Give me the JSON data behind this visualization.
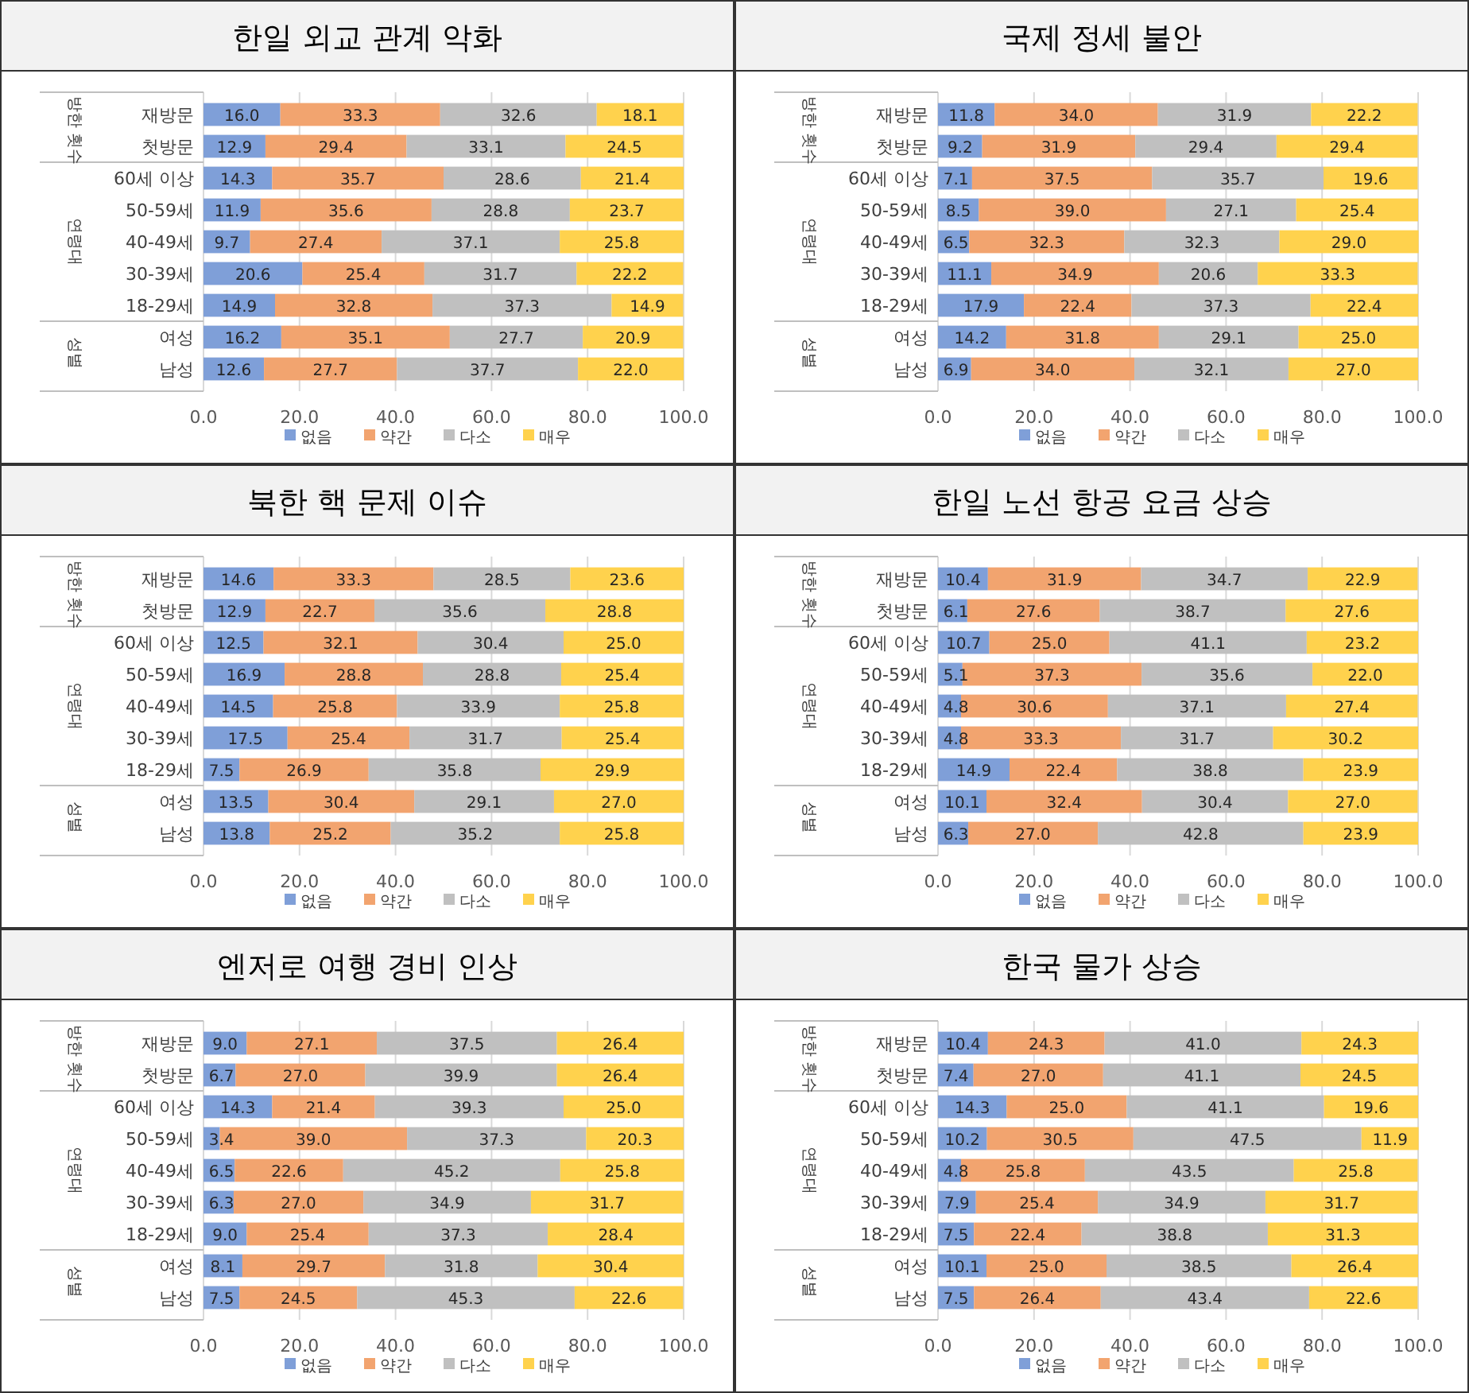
{
  "chart_data": [
    {
      "type": "bar",
      "orientation": "horizontal",
      "stacked": true,
      "title": "한일 외교 관계 악화",
      "categories": [
        "재방문",
        "첫방문",
        "60세 이상",
        "50-59세",
        "40-49세",
        "30-39세",
        "18-29세",
        "여성",
        "남성"
      ],
      "series": [
        {
          "name": "없음",
          "color": "#7f9fd8",
          "values": [
            16.0,
            12.9,
            14.3,
            11.9,
            9.7,
            20.6,
            14.9,
            16.2,
            12.6
          ],
          "value_labels": [
            "16.0",
            "12.9",
            "14.3",
            "11.9",
            "9.7",
            "20.6",
            "14.9",
            "16.2",
            "12.6"
          ]
        },
        {
          "name": "약간",
          "color": "#f2a46f",
          "values": [
            33.3,
            29.4,
            35.7,
            35.6,
            27.4,
            25.4,
            32.8,
            35.1,
            27.7
          ],
          "value_labels": [
            "33.3",
            "29.4",
            "35.7",
            "35.6",
            "27.4",
            "25.4",
            "32.8",
            "35.1",
            "27.7"
          ]
        },
        {
          "name": "다소",
          "color": "#c0c0c0",
          "values": [
            32.6,
            33.1,
            28.6,
            28.8,
            37.1,
            31.7,
            37.3,
            27.7,
            37.7
          ],
          "value_labels": [
            "32.6",
            "33.1",
            "28.6",
            "28.8",
            "37.1",
            "31.7",
            "37.3",
            "27.7",
            "37.7"
          ]
        },
        {
          "name": "매우",
          "color": "#ffd24d",
          "values": [
            18.1,
            24.5,
            21.4,
            23.7,
            25.8,
            22.2,
            14.9,
            20.9,
            22.0
          ],
          "value_labels": [
            "18.1",
            "24.5",
            "21.4",
            "23.7",
            "25.8",
            "22.2",
            "14.9",
            "20.9",
            "22.0"
          ]
        }
      ],
      "xlim": [
        0,
        100
      ],
      "xticks": [
        {
          "value": 0,
          "label": "0.0"
        },
        {
          "value": 20,
          "label": "20.0"
        },
        {
          "value": 40,
          "label": "40.0"
        },
        {
          "value": 60,
          "label": "60.0"
        },
        {
          "value": 80,
          "label": "80.0"
        },
        {
          "value": 100,
          "label": "100.0"
        }
      ],
      "grid": "x",
      "legend": "bottom",
      "annotations": [
        "방한 횟수",
        "연령대",
        "성별"
      ]
    },
    {
      "type": "bar",
      "orientation": "horizontal",
      "stacked": true,
      "title": "국제 정세 불안",
      "categories": [
        "재방문",
        "첫방문",
        "60세 이상",
        "50-59세",
        "40-49세",
        "30-39세",
        "18-29세",
        "여성",
        "남성"
      ],
      "series": [
        {
          "name": "없음",
          "color": "#7f9fd8",
          "values": [
            11.8,
            9.2,
            7.1,
            8.5,
            6.5,
            11.1,
            17.9,
            14.2,
            6.9
          ],
          "value_labels": [
            "11.8",
            "9.2",
            "7.1",
            "8.5",
            "6.5",
            "11.1",
            "17.9",
            "14.2",
            "6.9"
          ]
        },
        {
          "name": "약간",
          "color": "#f2a46f",
          "values": [
            34.0,
            31.9,
            37.5,
            39.0,
            32.3,
            34.9,
            22.4,
            31.8,
            34.0
          ],
          "value_labels": [
            "34.0",
            "31.9",
            "37.5",
            "39.0",
            "32.3",
            "34.9",
            "22.4",
            "31.8",
            "34.0"
          ]
        },
        {
          "name": "다소",
          "color": "#c0c0c0",
          "values": [
            31.9,
            29.4,
            35.7,
            27.1,
            32.3,
            20.6,
            37.3,
            29.1,
            32.1
          ],
          "value_labels": [
            "31.9",
            "29.4",
            "35.7",
            "27.1",
            "32.3",
            "20.6",
            "37.3",
            "29.1",
            "32.1"
          ]
        },
        {
          "name": "매우",
          "color": "#ffd24d",
          "values": [
            22.2,
            29.4,
            19.6,
            25.4,
            29.0,
            33.3,
            22.4,
            25.0,
            27.0
          ],
          "value_labels": [
            "22.2",
            "29.4",
            "19.6",
            "25.4",
            "29.0",
            "33.3",
            "22.4",
            "25.0",
            "27.0"
          ]
        }
      ],
      "xlim": [
        0,
        100
      ],
      "xticks": [
        {
          "value": 0,
          "label": "0.0"
        },
        {
          "value": 20,
          "label": "20.0"
        },
        {
          "value": 40,
          "label": "40.0"
        },
        {
          "value": 60,
          "label": "60.0"
        },
        {
          "value": 80,
          "label": "80.0"
        },
        {
          "value": 100,
          "label": "100.0"
        }
      ],
      "grid": "x",
      "legend": "bottom",
      "annotations": [
        "방한 횟수",
        "연령대",
        "성별"
      ]
    },
    {
      "type": "bar",
      "orientation": "horizontal",
      "stacked": true,
      "title": "북한 핵 문제 이슈",
      "categories": [
        "재방문",
        "첫방문",
        "60세 이상",
        "50-59세",
        "40-49세",
        "30-39세",
        "18-29세",
        "여성",
        "남성"
      ],
      "series": [
        {
          "name": "없음",
          "color": "#7f9fd8",
          "values": [
            14.6,
            12.9,
            12.5,
            16.9,
            14.5,
            17.5,
            7.5,
            13.5,
            13.8
          ],
          "value_labels": [
            "14.6",
            "12.9",
            "12.5",
            "16.9",
            "14.5",
            "17.5",
            "7.5",
            "13.5",
            "13.8"
          ]
        },
        {
          "name": "약간",
          "color": "#f2a46f",
          "values": [
            33.3,
            22.7,
            32.1,
            28.8,
            25.8,
            25.4,
            26.9,
            30.4,
            25.2
          ],
          "value_labels": [
            "33.3",
            "22.7",
            "32.1",
            "28.8",
            "25.8",
            "25.4",
            "26.9",
            "30.4",
            "25.2"
          ]
        },
        {
          "name": "다소",
          "color": "#c0c0c0",
          "values": [
            28.5,
            35.6,
            30.4,
            28.8,
            33.9,
            31.7,
            35.8,
            29.1,
            35.2
          ],
          "value_labels": [
            "28.5",
            "35.6",
            "30.4",
            "28.8",
            "33.9",
            "31.7",
            "35.8",
            "29.1",
            "35.2"
          ]
        },
        {
          "name": "매우",
          "color": "#ffd24d",
          "values": [
            23.6,
            28.8,
            25.0,
            25.4,
            25.8,
            25.4,
            29.9,
            27.0,
            25.8
          ],
          "value_labels": [
            "23.6",
            "28.8",
            "25.0",
            "25.4",
            "25.8",
            "25.4",
            "29.9",
            "27.0",
            "25.8"
          ]
        }
      ],
      "xlim": [
        0,
        100
      ],
      "xticks": [
        {
          "value": 0,
          "label": "0.0"
        },
        {
          "value": 20,
          "label": "20.0"
        },
        {
          "value": 40,
          "label": "40.0"
        },
        {
          "value": 60,
          "label": "60.0"
        },
        {
          "value": 80,
          "label": "80.0"
        },
        {
          "value": 100,
          "label": "100.0"
        }
      ],
      "grid": "x",
      "legend": "bottom",
      "annotations": [
        "방한 횟수",
        "연령대",
        "성별"
      ]
    },
    {
      "type": "bar",
      "orientation": "horizontal",
      "stacked": true,
      "title": "한일 노선 항공 요금 상승",
      "categories": [
        "재방문",
        "첫방문",
        "60세 이상",
        "50-59세",
        "40-49세",
        "30-39세",
        "18-29세",
        "여성",
        "남성"
      ],
      "series": [
        {
          "name": "없음",
          "color": "#7f9fd8",
          "values": [
            10.4,
            6.1,
            10.7,
            5.1,
            4.8,
            4.8,
            14.9,
            10.1,
            6.3
          ],
          "value_labels": [
            "10.4",
            "6.1",
            "10.7",
            "5.1",
            "4.8",
            "4.8",
            "14.9",
            "10.1",
            "6.3"
          ]
        },
        {
          "name": "약간",
          "color": "#f2a46f",
          "values": [
            31.9,
            27.6,
            25.0,
            37.3,
            30.6,
            33.3,
            22.4,
            32.4,
            27.0
          ],
          "value_labels": [
            "31.9",
            "27.6",
            "25.0",
            "37.3",
            "30.6",
            "33.3",
            "22.4",
            "32.4",
            "27.0"
          ]
        },
        {
          "name": "다소",
          "color": "#c0c0c0",
          "values": [
            34.7,
            38.7,
            41.1,
            35.6,
            37.1,
            31.7,
            38.8,
            30.4,
            42.8
          ],
          "value_labels": [
            "34.7",
            "38.7",
            "41.1",
            "35.6",
            "37.1",
            "31.7",
            "38.8",
            "30.4",
            "42.8"
          ]
        },
        {
          "name": "매우",
          "color": "#ffd24d",
          "values": [
            22.9,
            27.6,
            23.2,
            22.0,
            27.4,
            30.2,
            23.9,
            27.0,
            23.9
          ],
          "value_labels": [
            "22.9",
            "27.6",
            "23.2",
            "22.0",
            "27.4",
            "30.2",
            "23.9",
            "27.0",
            "23.9"
          ]
        }
      ],
      "xlim": [
        0,
        100
      ],
      "xticks": [
        {
          "value": 0,
          "label": "0.0"
        },
        {
          "value": 20,
          "label": "20.0"
        },
        {
          "value": 40,
          "label": "40.0"
        },
        {
          "value": 60,
          "label": "60.0"
        },
        {
          "value": 80,
          "label": "80.0"
        },
        {
          "value": 100,
          "label": "100.0"
        }
      ],
      "grid": "x",
      "legend": "bottom",
      "annotations": [
        "방한 횟수",
        "연령대",
        "성별"
      ]
    },
    {
      "type": "bar",
      "orientation": "horizontal",
      "stacked": true,
      "title": "엔저로 여행 경비 인상",
      "categories": [
        "재방문",
        "첫방문",
        "60세 이상",
        "50-59세",
        "40-49세",
        "30-39세",
        "18-29세",
        "여성",
        "남성"
      ],
      "series": [
        {
          "name": "없음",
          "color": "#7f9fd8",
          "values": [
            9.0,
            6.7,
            14.3,
            3.4,
            6.5,
            6.3,
            9.0,
            8.1,
            7.5
          ],
          "value_labels": [
            "9.0",
            "6.7",
            "14.3",
            "3.4",
            "6.5",
            "6.3",
            "9.0",
            "8.1",
            "7.5"
          ]
        },
        {
          "name": "약간",
          "color": "#f2a46f",
          "values": [
            27.1,
            27.0,
            21.4,
            39.0,
            22.6,
            27.0,
            25.4,
            29.7,
            24.5
          ],
          "value_labels": [
            "27.1",
            "27.0",
            "21.4",
            "39.0",
            "22.6",
            "27.0",
            "25.4",
            "29.7",
            "24.5"
          ]
        },
        {
          "name": "다소",
          "color": "#c0c0c0",
          "values": [
            37.5,
            39.9,
            39.3,
            37.3,
            45.2,
            34.9,
            37.3,
            31.8,
            45.3
          ],
          "value_labels": [
            "37.5",
            "39.9",
            "39.3",
            "37.3",
            "45.2",
            "34.9",
            "37.3",
            "31.8",
            "45.3"
          ]
        },
        {
          "name": "매우",
          "color": "#ffd24d",
          "values": [
            26.4,
            26.4,
            25.0,
            20.3,
            25.8,
            31.7,
            28.4,
            30.4,
            22.6
          ],
          "value_labels": [
            "26.4",
            "26.4",
            "25.0",
            "20.3",
            "25.8",
            "31.7",
            "28.4",
            "30.4",
            "22.6"
          ]
        }
      ],
      "xlim": [
        0,
        100
      ],
      "xticks": [
        {
          "value": 0,
          "label": "0.0"
        },
        {
          "value": 20,
          "label": "20.0"
        },
        {
          "value": 40,
          "label": "40.0"
        },
        {
          "value": 60,
          "label": "60.0"
        },
        {
          "value": 80,
          "label": "80.0"
        },
        {
          "value": 100,
          "label": "100.0"
        }
      ],
      "grid": "x",
      "legend": "bottom",
      "annotations": [
        "방한 횟수",
        "연령대",
        "성별"
      ]
    },
    {
      "type": "bar",
      "orientation": "horizontal",
      "stacked": true,
      "title": "한국 물가 상승",
      "categories": [
        "재방문",
        "첫방문",
        "60세 이상",
        "50-59세",
        "40-49세",
        "30-39세",
        "18-29세",
        "여성",
        "남성"
      ],
      "series": [
        {
          "name": "없음",
          "color": "#7f9fd8",
          "values": [
            10.4,
            7.4,
            14.3,
            10.2,
            4.8,
            7.9,
            7.5,
            10.1,
            7.5
          ],
          "value_labels": [
            "10.4",
            "7.4",
            "14.3",
            "10.2",
            "4.8",
            "7.9",
            "7.5",
            "10.1",
            "7.5"
          ]
        },
        {
          "name": "약간",
          "color": "#f2a46f",
          "values": [
            24.3,
            27.0,
            25.0,
            30.5,
            25.8,
            25.4,
            22.4,
            25.0,
            26.4
          ],
          "value_labels": [
            "24.3",
            "27.0",
            "25.0",
            "30.5",
            "25.8",
            "25.4",
            "22.4",
            "25.0",
            "26.4"
          ]
        },
        {
          "name": "다소",
          "color": "#c0c0c0",
          "values": [
            41.0,
            41.1,
            41.1,
            47.5,
            43.5,
            34.9,
            38.8,
            38.5,
            43.4
          ],
          "value_labels": [
            "41.0",
            "41.1",
            "41.1",
            "47.5",
            "43.5",
            "34.9",
            "38.8",
            "38.5",
            "43.4"
          ]
        },
        {
          "name": "매우",
          "color": "#ffd24d",
          "values": [
            24.3,
            24.5,
            19.6,
            11.9,
            25.8,
            31.7,
            31.3,
            26.4,
            22.6
          ],
          "value_labels": [
            "24.3",
            "24.5",
            "19.6",
            "11.9",
            "25.8",
            "31.7",
            "31.3",
            "26.4",
            "22.6"
          ]
        }
      ],
      "xlim": [
        0,
        100
      ],
      "xticks": [
        {
          "value": 0,
          "label": "0.0"
        },
        {
          "value": 20,
          "label": "20.0"
        },
        {
          "value": 40,
          "label": "40.0"
        },
        {
          "value": 60,
          "label": "60.0"
        },
        {
          "value": 80,
          "label": "80.0"
        },
        {
          "value": 100,
          "label": "100.0"
        }
      ],
      "grid": "x",
      "legend": "bottom",
      "annotations": [
        "방한 횟수",
        "연령대",
        "성별"
      ]
    }
  ]
}
